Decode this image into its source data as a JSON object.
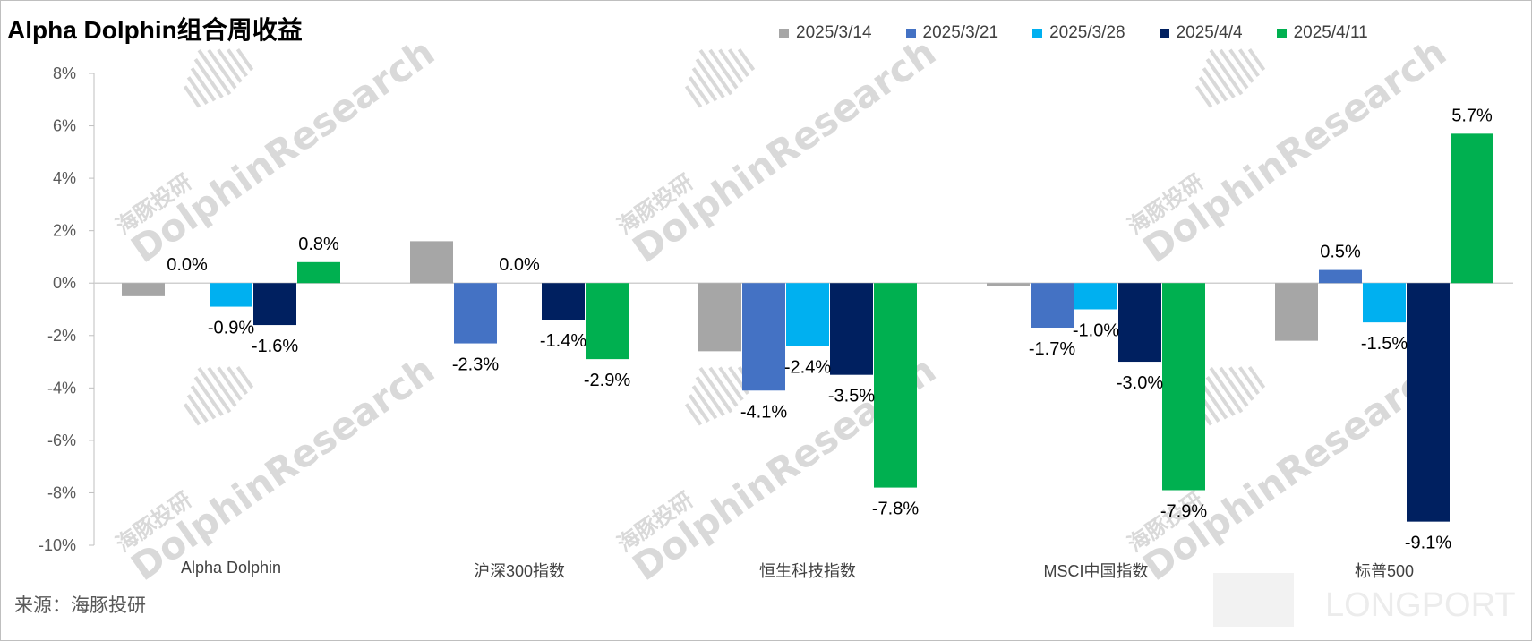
{
  "title": "Alpha Dolphin组合周收益",
  "source": "来源：海豚投研",
  "watermarks": {
    "dolphin_en": "DolphinResearch",
    "dolphin_cn": "海豚投研",
    "longport": "LONGPORT",
    "color": "#d9d9d9"
  },
  "chart_data": {
    "type": "bar",
    "categories": [
      "Alpha Dolphin",
      "沪深300指数",
      "恒生科技指数",
      "MSCI中国指数",
      "标普500"
    ],
    "series": [
      {
        "name": "2025/3/14",
        "color": "#a6a6a6",
        "values": [
          -0.5,
          1.6,
          -2.6,
          -0.1,
          -2.2
        ],
        "labels": [
          "",
          "",
          "",
          "",
          ""
        ]
      },
      {
        "name": "2025/3/21",
        "color": "#4472c4",
        "values": [
          0.0,
          -2.3,
          -4.1,
          -1.7,
          0.5
        ],
        "labels": [
          "0.0%",
          "-2.3%",
          "-4.1%",
          "-1.7%",
          "0.5%"
        ]
      },
      {
        "name": "2025/3/28",
        "color": "#00b0f0",
        "values": [
          -0.9,
          0.0,
          -2.4,
          -1.0,
          -1.5
        ],
        "labels": [
          "-0.9%",
          "0.0%",
          "-2.4%",
          "-1.0%",
          "-1.5%"
        ]
      },
      {
        "name": "2025/4/4",
        "color": "#002060",
        "values": [
          -1.6,
          -1.4,
          -3.5,
          -3.0,
          -9.1
        ],
        "labels": [
          "-1.6%",
          "-1.4%",
          "-3.5%",
          "-3.0%",
          "-9.1%"
        ]
      },
      {
        "name": "2025/4/11",
        "color": "#00b050",
        "values": [
          0.8,
          -2.9,
          -7.8,
          -7.9,
          5.7
        ],
        "labels": [
          "0.8%",
          "-2.9%",
          "-7.8%",
          "-7.9%",
          "5.7%"
        ]
      }
    ],
    "ylim": [
      -10,
      8
    ],
    "yticks": [
      "-10%",
      "-8%",
      "-6%",
      "-4%",
      "-2%",
      "0%",
      "2%",
      "4%",
      "6%",
      "8%"
    ],
    "ytick_values": [
      -10,
      -8,
      -6,
      -4,
      -2,
      0,
      2,
      4,
      6,
      8
    ],
    "grid": false,
    "legend_position": "top-right",
    "xlabel": "",
    "ylabel": ""
  }
}
